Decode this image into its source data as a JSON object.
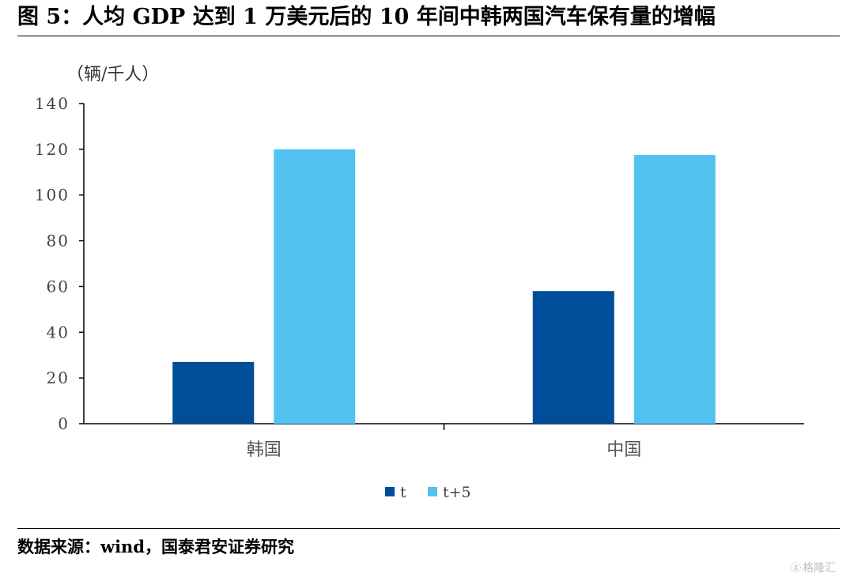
{
  "title": "图 5：人均 GDP 达到 1 万美元后的 10 年间中韩两国汽车保有量的增幅",
  "source": "数据来源：wind，国泰君安证券研究",
  "watermark": "格隆汇",
  "chart_data": {
    "type": "bar",
    "title": "",
    "xlabel": "",
    "ylabel": "（辆/千人）",
    "ylim": [
      0,
      140
    ],
    "yticks": [
      0,
      20,
      40,
      60,
      80,
      100,
      120,
      140
    ],
    "grid": false,
    "legend_position": "bottom",
    "categories": [
      "韩国",
      "中国"
    ],
    "series": [
      {
        "name": "t",
        "color": "#004d99",
        "values": [
          27,
          58
        ]
      },
      {
        "name": "t+5",
        "color": "#52c3f1",
        "values": [
          120,
          117.5
        ]
      }
    ]
  }
}
